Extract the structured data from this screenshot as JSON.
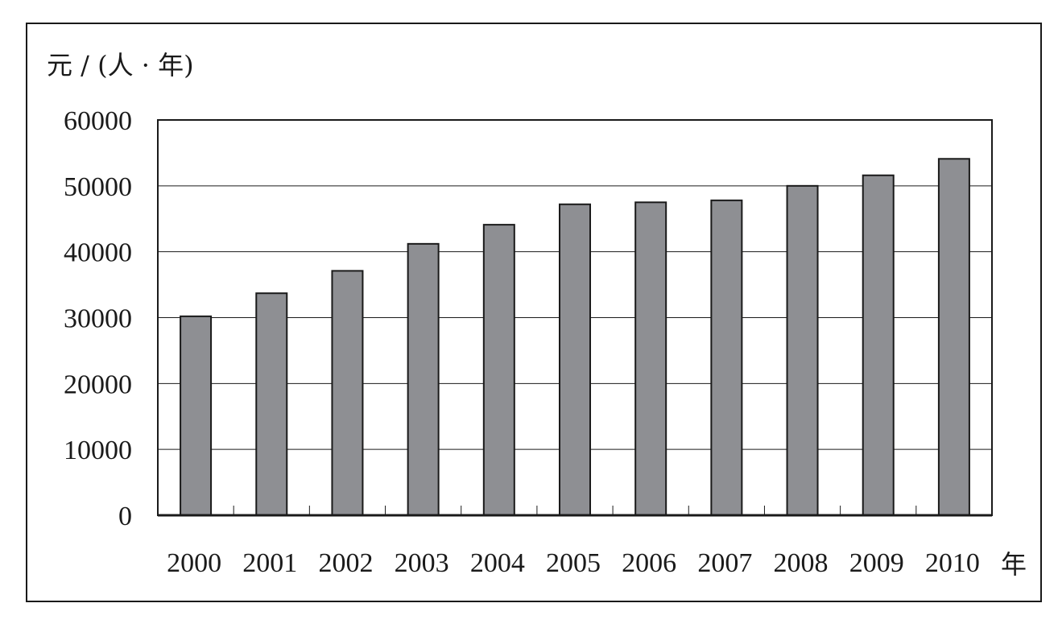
{
  "chart_data": {
    "type": "bar",
    "title": "",
    "ylabel": "元 / (人 · 年)",
    "xlabel": "年",
    "categories": [
      "2000",
      "2001",
      "2002",
      "2003",
      "2004",
      "2005",
      "2006",
      "2007",
      "2008",
      "2009",
      "2010"
    ],
    "values": [
      30200,
      33700,
      37100,
      41200,
      44100,
      47200,
      47500,
      47800,
      50000,
      51600,
      54100
    ],
    "ylim": [
      0,
      60000
    ],
    "yticks": [
      0,
      10000,
      20000,
      30000,
      40000,
      50000,
      60000
    ],
    "ytick_labels": [
      "0",
      "10000",
      "20000",
      "30000",
      "40000",
      "50000",
      "60000"
    ],
    "grid": true,
    "legend": "none",
    "colors": {
      "bar_fill": "#8e8f93",
      "bar_stroke": "#1a1a1a",
      "axis": "#1a1a1a",
      "grid": "#1a1a1a"
    }
  }
}
